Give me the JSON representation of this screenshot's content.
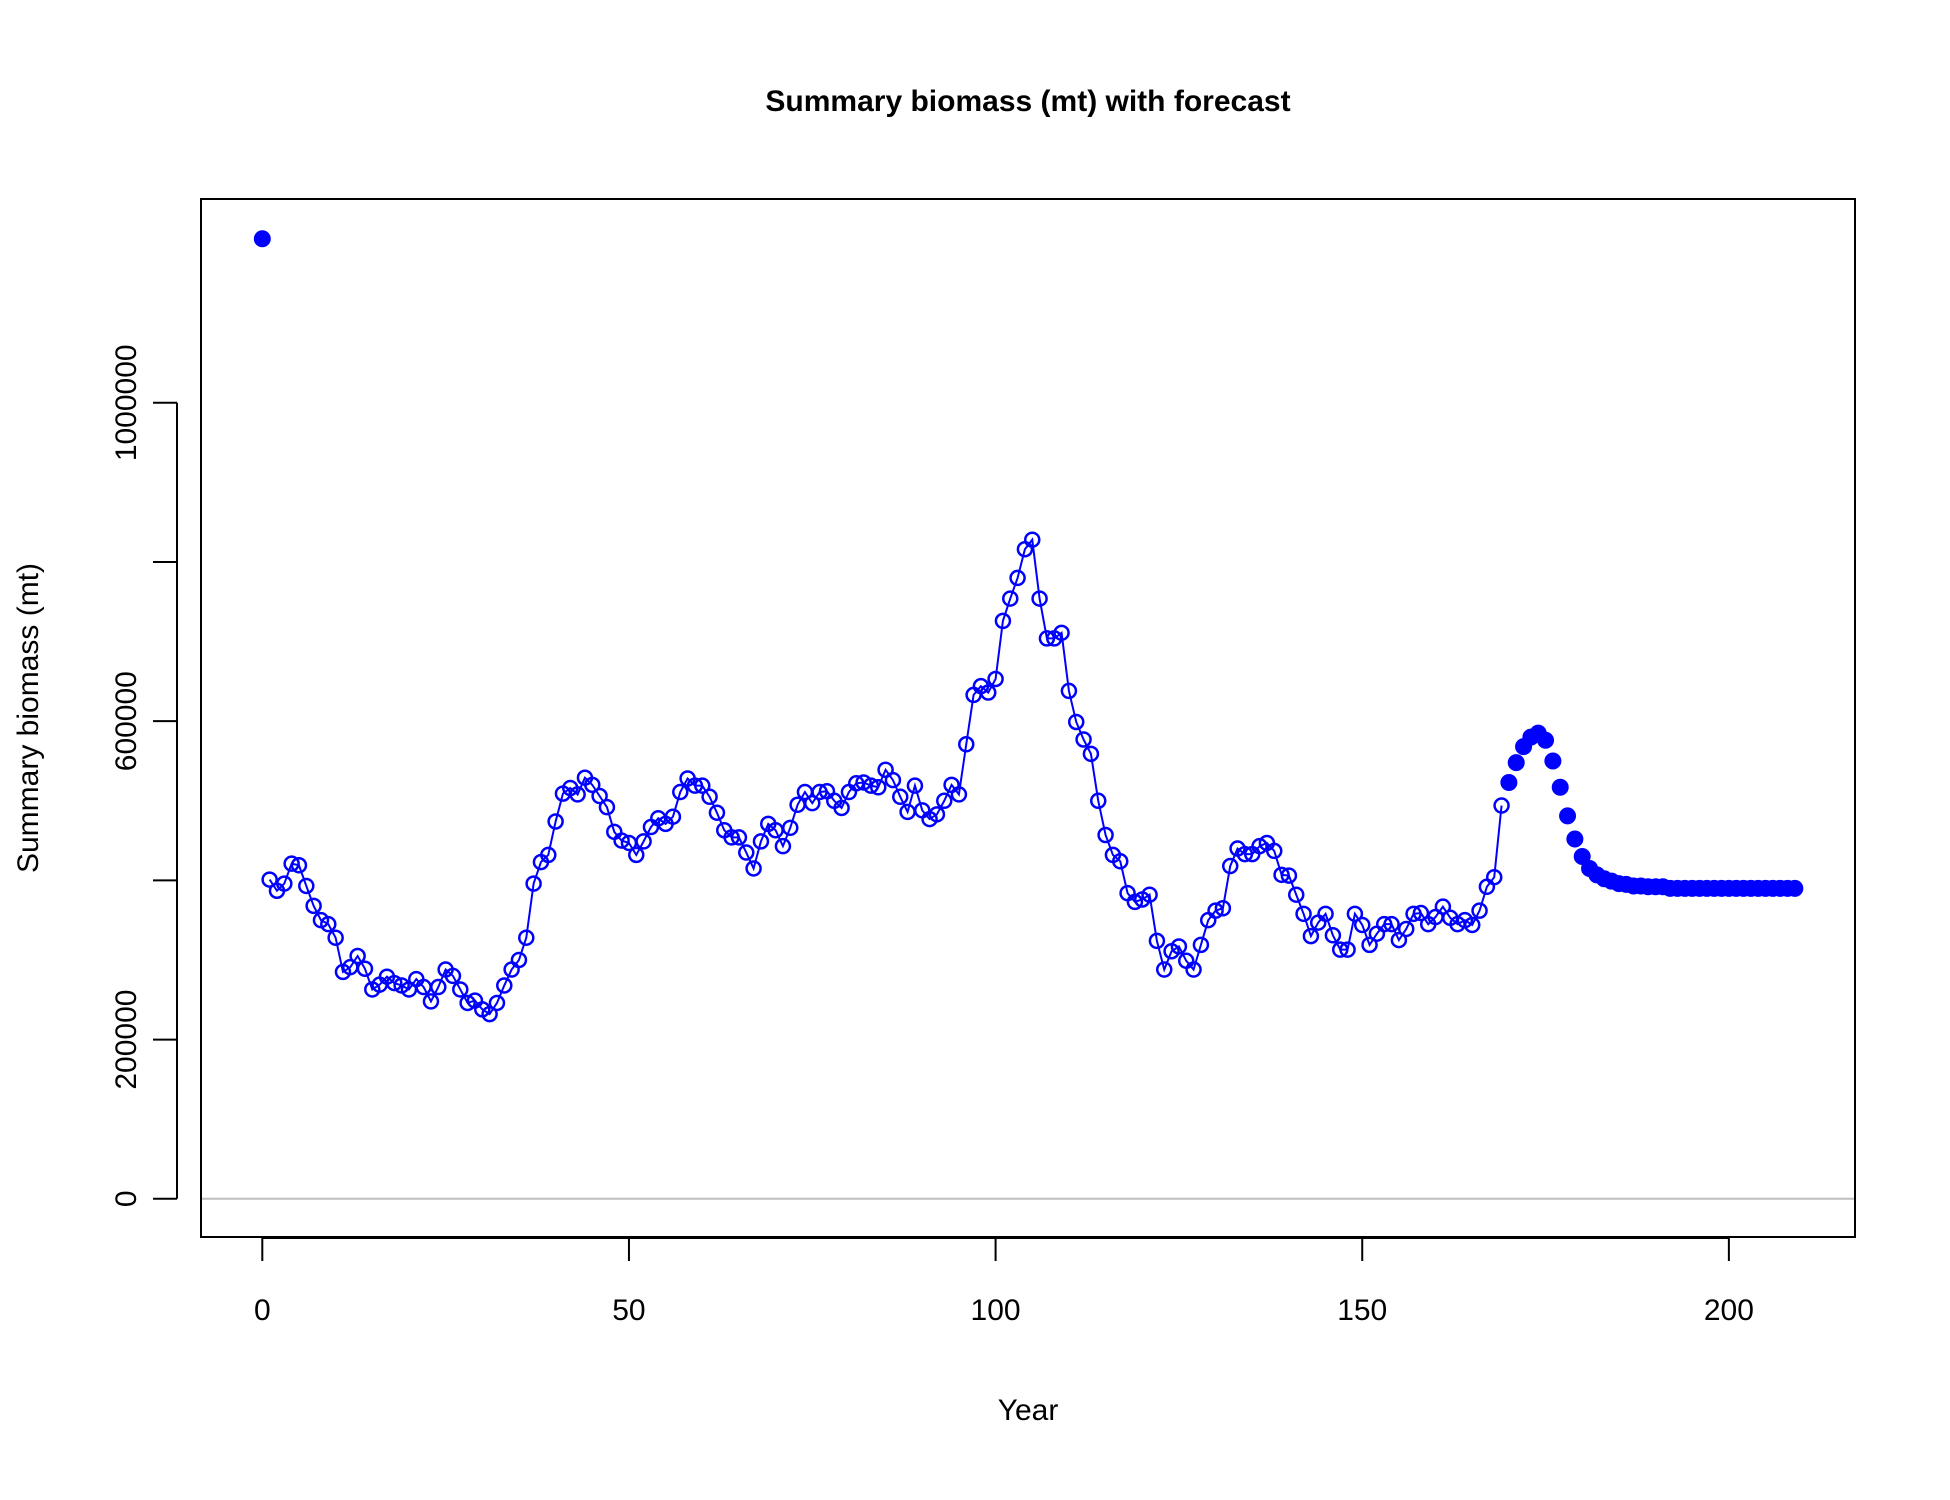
{
  "chart_data": {
    "type": "scatter",
    "title": "Summary biomass (mt) with forecast",
    "x_label": "Year",
    "y_label": "Summary biomass (mt)",
    "xlim": [
      -8.36,
      217.2
    ],
    "ylim": [
      -48000,
      1256000
    ],
    "xticks": [
      0,
      50,
      100,
      150,
      200
    ],
    "yticks": [
      0,
      200000,
      400000,
      600000,
      800000,
      1000000
    ],
    "tick_labels_shown": [
      0,
      200000,
      600000,
      1000000
    ],
    "reference_line": 0,
    "reference_line_color": "#bebebe",
    "series": [
      {
        "marker": "filled",
        "line": false,
        "color": "#0000ff",
        "x": [
          0
        ],
        "values": [
          1206000
        ]
      },
      {
        "marker": "open",
        "line": true,
        "color": "#0000ff",
        "x": [
          1,
          2,
          3,
          4,
          5,
          6,
          7,
          8,
          9,
          10,
          11,
          12,
          13,
          14,
          15,
          16,
          17,
          18,
          19,
          20,
          21,
          22,
          23,
          24,
          25,
          26,
          27,
          28,
          29,
          30,
          31,
          32,
          33,
          34,
          35,
          36,
          37,
          38,
          39,
          40,
          41,
          42,
          43,
          44,
          45,
          46,
          47,
          48,
          49,
          50,
          51,
          52,
          53,
          54,
          55,
          56,
          57,
          58,
          59,
          60,
          61,
          62,
          63,
          64,
          65,
          66,
          67,
          68,
          69,
          70,
          71,
          72,
          73,
          74,
          75,
          76,
          77,
          78,
          79,
          80,
          81,
          82,
          83,
          84,
          85,
          86,
          87,
          88,
          89,
          90,
          91,
          92,
          93,
          94,
          95,
          96,
          97,
          98,
          99,
          100,
          101,
          102,
          103,
          104,
          105,
          106,
          107,
          108,
          109,
          110,
          111,
          112,
          113,
          114,
          115,
          116,
          117,
          118,
          119,
          120,
          121,
          122,
          123,
          124,
          125,
          126,
          127,
          128,
          129,
          130,
          131,
          132,
          133,
          134,
          135,
          136,
          137,
          138,
          139,
          140,
          141,
          142,
          143,
          144,
          145,
          146,
          147,
          148,
          149,
          150,
          151,
          152,
          153,
          154,
          155,
          156,
          157,
          158,
          159,
          160,
          161,
          162,
          163,
          164,
          165,
          166,
          167,
          168,
          169
        ],
        "values": [
          401000,
          387000,
          396000,
          421000,
          419000,
          393000,
          368000,
          350000,
          345000,
          328000,
          285000,
          291000,
          305000,
          289000,
          263000,
          269000,
          279000,
          271000,
          268000,
          263000,
          276000,
          266000,
          248000,
          266000,
          288000,
          280000,
          263000,
          246000,
          249000,
          238000,
          232000,
          246000,
          268000,
          288000,
          300000,
          328000,
          396000,
          423000,
          432000,
          474000,
          509000,
          516000,
          508000,
          529000,
          520000,
          506000,
          492000,
          461000,
          450000,
          447000,
          432000,
          449000,
          467000,
          478000,
          471000,
          480000,
          511000,
          528000,
          519000,
          519000,
          505000,
          485000,
          463000,
          454000,
          454000,
          435000,
          415000,
          449000,
          471000,
          463000,
          443000,
          466000,
          495000,
          511000,
          497000,
          511000,
          512000,
          500000,
          491000,
          511000,
          522000,
          523000,
          519000,
          517000,
          539000,
          526000,
          505000,
          486000,
          519000,
          488000,
          477000,
          483000,
          500000,
          520000,
          508000,
          571000,
          633000,
          644000,
          636000,
          653000,
          726000,
          754000,
          780000,
          816000,
          828000,
          754000,
          704000,
          704000,
          711000,
          638000,
          599000,
          577000,
          559000,
          500000,
          457000,
          432000,
          424000,
          384000,
          373000,
          376000,
          382000,
          324000,
          288000,
          311000,
          317000,
          299000,
          288000,
          319000,
          350000,
          362000,
          365000,
          418000,
          440000,
          433000,
          433000,
          443000,
          447000,
          437000,
          407000,
          406000,
          382000,
          358000,
          330000,
          347000,
          358000,
          331000,
          313000,
          313000,
          358000,
          344000,
          319000,
          333000,
          345000,
          345000,
          325000,
          339000,
          358000,
          359000,
          345000,
          354000,
          367000,
          353000,
          345000,
          350000,
          344000,
          362000,
          392000,
          404000,
          494000
        ]
      },
      {
        "marker": "filled",
        "line": false,
        "color": "#0000ff",
        "x": [
          170,
          171,
          172,
          173,
          174,
          175,
          176,
          177,
          178,
          179,
          180,
          181,
          182,
          183,
          184,
          185,
          186,
          187,
          188,
          189,
          190,
          191,
          192,
          193,
          194,
          195,
          196,
          197,
          198,
          199,
          200,
          201,
          202,
          203,
          204,
          205,
          206,
          207,
          208,
          209
        ],
        "values": [
          523000,
          548000,
          568000,
          580000,
          585000,
          576000,
          550000,
          517000,
          481000,
          452000,
          430000,
          415000,
          407000,
          402000,
          399000,
          396000,
          395000,
          393000,
          393000,
          392000,
          392000,
          392000,
          390000,
          390000,
          390000,
          390000,
          390000,
          390000,
          390000,
          390000,
          390000,
          390000,
          390000,
          390000,
          390000,
          390000,
          390000,
          390000,
          390000,
          390000
        ]
      }
    ]
  }
}
